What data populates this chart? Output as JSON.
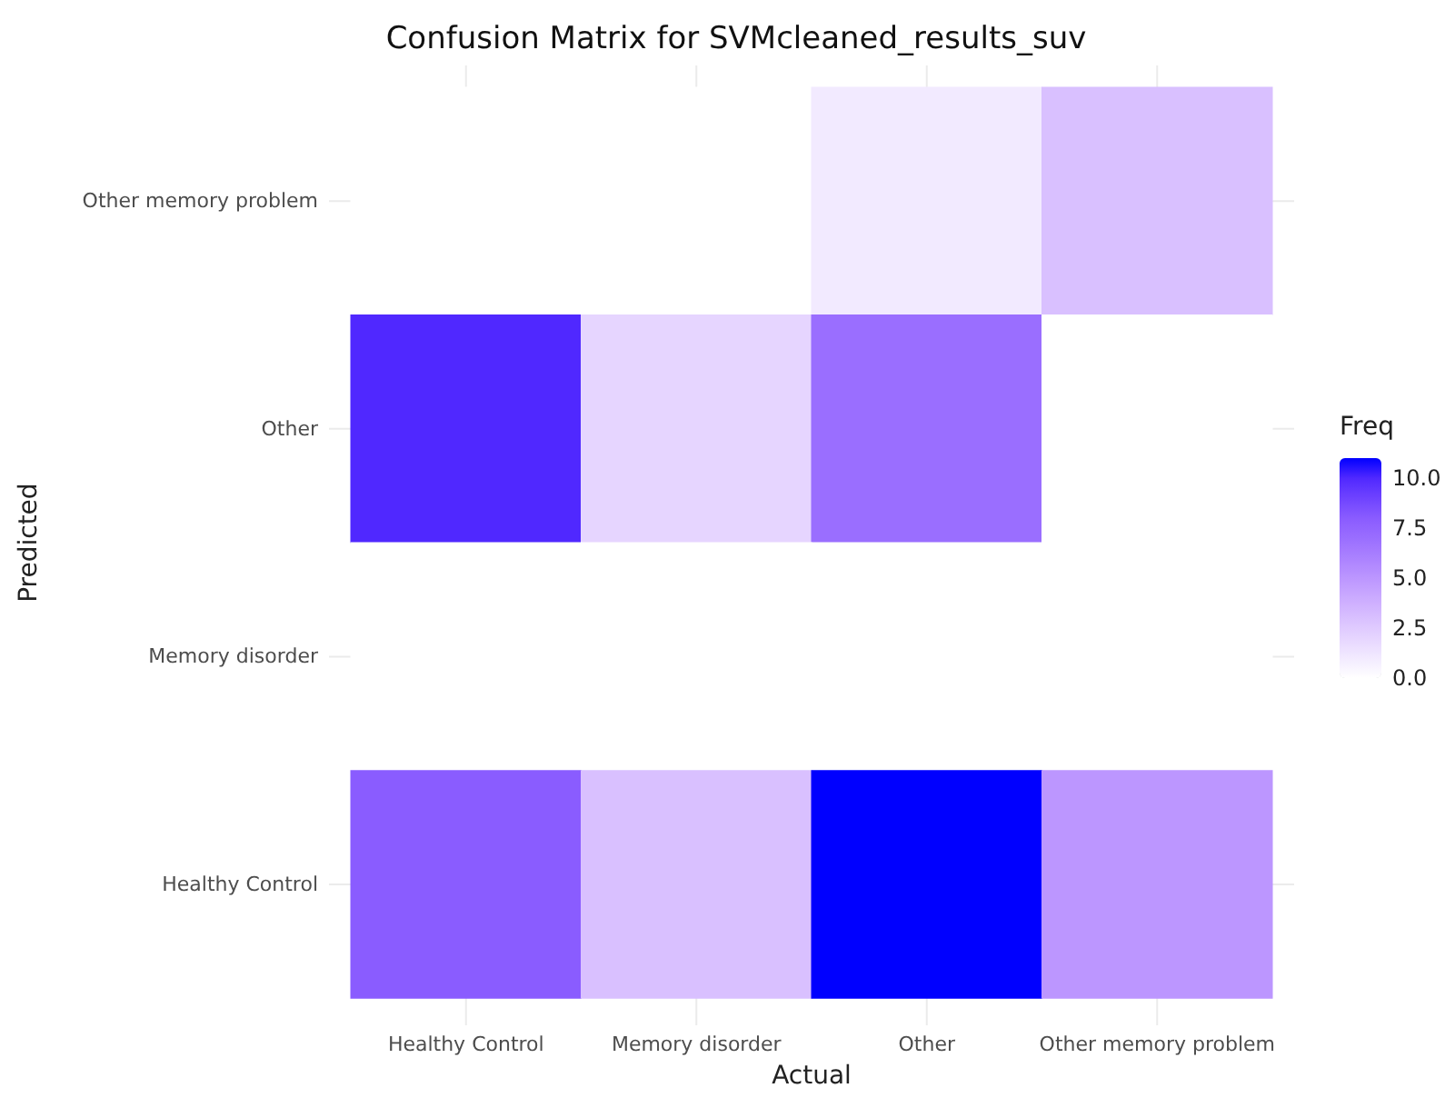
{
  "chart_data": {
    "type": "heatmap",
    "title": "Confusion Matrix for SVMcleaned_results_suv",
    "xlabel": "Actual",
    "ylabel": "Predicted",
    "clabel": "Freq",
    "categories": [
      "Healthy Control",
      "Memory disorder",
      "Other",
      "Other memory problem"
    ],
    "y_categories": [
      "Other memory problem",
      "Other",
      "Memory disorder",
      "Healthy Control"
    ],
    "cells": [
      [
        0,
        0,
        1,
        3
      ],
      [
        10,
        2,
        7,
        0
      ],
      [
        0,
        0,
        0,
        0
      ],
      [
        8,
        3,
        11,
        5
      ]
    ],
    "clim": [
      0,
      11
    ],
    "cticks": [
      {
        "value": 0,
        "label": "0.0"
      },
      {
        "value": 2.5,
        "label": "2.5"
      },
      {
        "value": 5,
        "label": "5.0"
      },
      {
        "value": 7.5,
        "label": "7.5"
      },
      {
        "value": 10,
        "label": "10.0"
      }
    ],
    "colors": [
      "#ffffff",
      "#f2eaff",
      "#e6d5ff",
      "#d9c0ff",
      "#cbabff",
      "#bc96ff",
      "#ab82ff",
      "#9a6eff",
      "#8a5cff",
      "#6f43ff",
      "#5028ff",
      "#0000ff"
    ],
    "grid": true
  }
}
